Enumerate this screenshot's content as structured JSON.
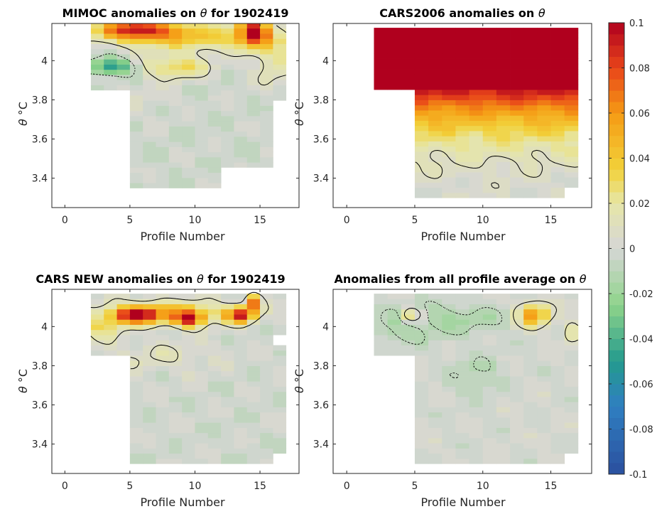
{
  "chart_data": [
    {
      "type": "heatmap",
      "title_prefix": "MIMOC anomalies on",
      "title_symbol": "θ",
      "title_suffix": " for 1902419",
      "xlabel": "Profile Number",
      "ylabel_symbol": "θ",
      "ylabel_unit": "°C",
      "xlim": [
        -1,
        18
      ],
      "ylim": [
        3.25,
        4.19
      ],
      "xticks": [
        "0",
        "5",
        "10",
        "15"
      ],
      "yticks": [
        "3.4",
        "3.6",
        "3.8",
        "4"
      ],
      "x_range": [
        2,
        17
      ],
      "y_range": [
        3.35,
        4.18
      ],
      "pattern": "mimoc",
      "contour_levels": [
        -0.01,
        0.01
      ]
    },
    {
      "type": "heatmap",
      "title_prefix": "CARS2006 anomalies on",
      "title_symbol": "θ",
      "title_suffix": "",
      "xlabel": "Profile Number",
      "ylabel_symbol": "θ",
      "ylabel_unit": "°C",
      "xlim": [
        -1,
        18
      ],
      "ylim": [
        3.25,
        4.19
      ],
      "xticks": [
        "0",
        "5",
        "10",
        "15"
      ],
      "yticks": [
        "3.4",
        "3.6",
        "3.8",
        "4"
      ],
      "x_range": [
        2,
        17
      ],
      "y_range": [
        3.3,
        4.18
      ],
      "pattern": "cars2006",
      "contour_levels": [
        -0.01,
        0.01
      ]
    },
    {
      "type": "heatmap",
      "title_prefix": "CARS NEW anomalies on",
      "title_symbol": "θ",
      "title_suffix": " for 1902419",
      "xlabel": "Profile Number",
      "ylabel_symbol": "θ",
      "ylabel_unit": "°C",
      "xlim": [
        -1,
        18
      ],
      "ylim": [
        3.25,
        4.19
      ],
      "xticks": [
        "0",
        "5",
        "10",
        "15"
      ],
      "yticks": [
        "3.4",
        "3.6",
        "3.8",
        "4"
      ],
      "x_range": [
        2,
        17
      ],
      "y_range": [
        3.3,
        4.18
      ],
      "pattern": "carsnew",
      "contour_levels": [
        -0.01,
        0.01
      ]
    },
    {
      "type": "heatmap",
      "title_prefix": "Anomalies from all profile average on",
      "title_symbol": "θ",
      "title_suffix": "",
      "xlabel": "Profile Number",
      "ylabel_symbol": "θ",
      "ylabel_unit": "°C",
      "xlim": [
        -1,
        18
      ],
      "ylim": [
        3.25,
        4.19
      ],
      "xticks": [
        "0",
        "5",
        "10",
        "15"
      ],
      "yticks": [
        "3.4",
        "3.6",
        "3.8",
        "4"
      ],
      "x_range": [
        2,
        17
      ],
      "y_range": [
        3.3,
        4.18
      ],
      "pattern": "average",
      "contour_levels": [
        -0.01,
        0.01
      ]
    }
  ],
  "colorbar": {
    "clim": [
      -0.1,
      0.1
    ],
    "ticks": [
      "0.1",
      "0.08",
      "0.06",
      "0.04",
      "0.02",
      "0",
      "-0.02",
      "-0.04",
      "-0.06",
      "-0.08",
      "-0.1"
    ],
    "colormap": [
      {
        "v": -0.1,
        "c": "#2b4f9e"
      },
      {
        "v": -0.07,
        "c": "#2f7fc1"
      },
      {
        "v": -0.05,
        "c": "#239a8d"
      },
      {
        "v": -0.025,
        "c": "#8fd48a"
      },
      {
        "v": 0.0,
        "c": "#d6d6d6"
      },
      {
        "v": 0.02,
        "c": "#e6e6a8"
      },
      {
        "v": 0.035,
        "c": "#f2d23a"
      },
      {
        "v": 0.06,
        "c": "#f59a14"
      },
      {
        "v": 0.08,
        "c": "#e8441a"
      },
      {
        "v": 0.1,
        "c": "#b0001e"
      }
    ]
  }
}
